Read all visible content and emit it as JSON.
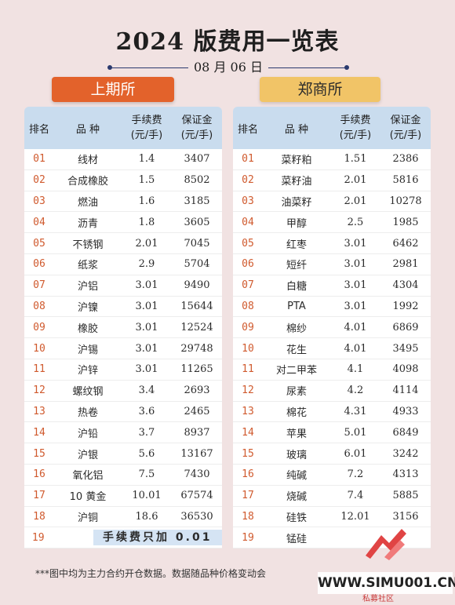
{
  "title": "2024 版费用一览表",
  "date": "08 月 06 日",
  "left_exchange": {
    "name": "上期所",
    "headers": {
      "rank": "排名",
      "variety": "品 种",
      "fee": [
        "手续费",
        "(元/手)"
      ],
      "margin": [
        "保证金",
        "(元/手)"
      ]
    },
    "rows": [
      {
        "rank": "01",
        "name": "线材",
        "fee": "1.4",
        "margin": "3407"
      },
      {
        "rank": "02",
        "name": "合成橡胶",
        "fee": "1.5",
        "margin": "8502"
      },
      {
        "rank": "03",
        "name": "燃油",
        "fee": "1.6",
        "margin": "3185"
      },
      {
        "rank": "04",
        "name": "沥青",
        "fee": "1.8",
        "margin": "3605"
      },
      {
        "rank": "05",
        "name": "不锈钢",
        "fee": "2.01",
        "margin": "7045"
      },
      {
        "rank": "06",
        "name": "纸浆",
        "fee": "2.9",
        "margin": "5704"
      },
      {
        "rank": "07",
        "name": "沪铝",
        "fee": "3.01",
        "margin": "9490"
      },
      {
        "rank": "08",
        "name": "沪镍",
        "fee": "3.01",
        "margin": "15644"
      },
      {
        "rank": "09",
        "name": "橡胶",
        "fee": "3.01",
        "margin": "12524"
      },
      {
        "rank": "10",
        "name": "沪锡",
        "fee": "3.01",
        "margin": "29748"
      },
      {
        "rank": "11",
        "name": "沪锌",
        "fee": "3.01",
        "margin": "11265"
      },
      {
        "rank": "12",
        "name": "螺纹钢",
        "fee": "3.4",
        "margin": "2693"
      },
      {
        "rank": "13",
        "name": "热卷",
        "fee": "3.6",
        "margin": "2465"
      },
      {
        "rank": "14",
        "name": "沪铅",
        "fee": "3.7",
        "margin": "8937"
      },
      {
        "rank": "15",
        "name": "沪银",
        "fee": "5.6",
        "margin": "13167"
      },
      {
        "rank": "16",
        "name": "氧化铝",
        "fee": "7.5",
        "margin": "7430"
      },
      {
        "rank": "17",
        "name": "10 黄金",
        "fee": "10.01",
        "margin": "67574"
      },
      {
        "rank": "18",
        "name": "沪铜",
        "fee": "18.6",
        "margin": "36530"
      }
    ],
    "last_rank": "19",
    "note": "手续费只加 0.01"
  },
  "right_exchange": {
    "name": "郑商所",
    "headers": {
      "rank": "排名",
      "variety": "品 种",
      "fee": [
        "手续费",
        "(元/手)"
      ],
      "margin": [
        "保证金",
        "(元/手)"
      ]
    },
    "rows": [
      {
        "rank": "01",
        "name": "菜籽粕",
        "fee": "1.51",
        "margin": "2386"
      },
      {
        "rank": "02",
        "name": "菜籽油",
        "fee": "2.01",
        "margin": "5816"
      },
      {
        "rank": "03",
        "name": "油菜籽",
        "fee": "2.01",
        "margin": "10278"
      },
      {
        "rank": "04",
        "name": "甲醇",
        "fee": "2.5",
        "margin": "1985"
      },
      {
        "rank": "05",
        "name": "红枣",
        "fee": "3.01",
        "margin": "6462"
      },
      {
        "rank": "06",
        "name": "短纤",
        "fee": "3.01",
        "margin": "2981"
      },
      {
        "rank": "07",
        "name": "白糖",
        "fee": "3.01",
        "margin": "4304"
      },
      {
        "rank": "08",
        "name": "PTA",
        "fee": "3.01",
        "margin": "1992"
      },
      {
        "rank": "09",
        "name": "棉纱",
        "fee": "4.01",
        "margin": "6869"
      },
      {
        "rank": "10",
        "name": "花生",
        "fee": "4.01",
        "margin": "3495"
      },
      {
        "rank": "11",
        "name": "对二甲苯",
        "fee": "4.1",
        "margin": "4098"
      },
      {
        "rank": "12",
        "name": "尿素",
        "fee": "4.2",
        "margin": "4114"
      },
      {
        "rank": "13",
        "name": "棉花",
        "fee": "4.31",
        "margin": "4933"
      },
      {
        "rank": "14",
        "name": "苹果",
        "fee": "5.01",
        "margin": "6849"
      },
      {
        "rank": "15",
        "name": "玻璃",
        "fee": "6.01",
        "margin": "3242"
      },
      {
        "rank": "16",
        "name": "纯碱",
        "fee": "7.2",
        "margin": "4313"
      },
      {
        "rank": "17",
        "name": "烧碱",
        "fee": "7.4",
        "margin": "5885"
      },
      {
        "rank": "18",
        "name": "硅铁",
        "fee": "12.01",
        "margin": "3156"
      },
      {
        "rank": "19",
        "name": "锰硅",
        "fee": "",
        "margin": ""
      }
    ]
  },
  "footnote": "***图中均为主力合约开仓数据。数据随品种价格变动会",
  "watermark": {
    "site": "WWW.SIMU001.CN",
    "sub": "私募社区",
    "logo_color": "#e04444"
  }
}
